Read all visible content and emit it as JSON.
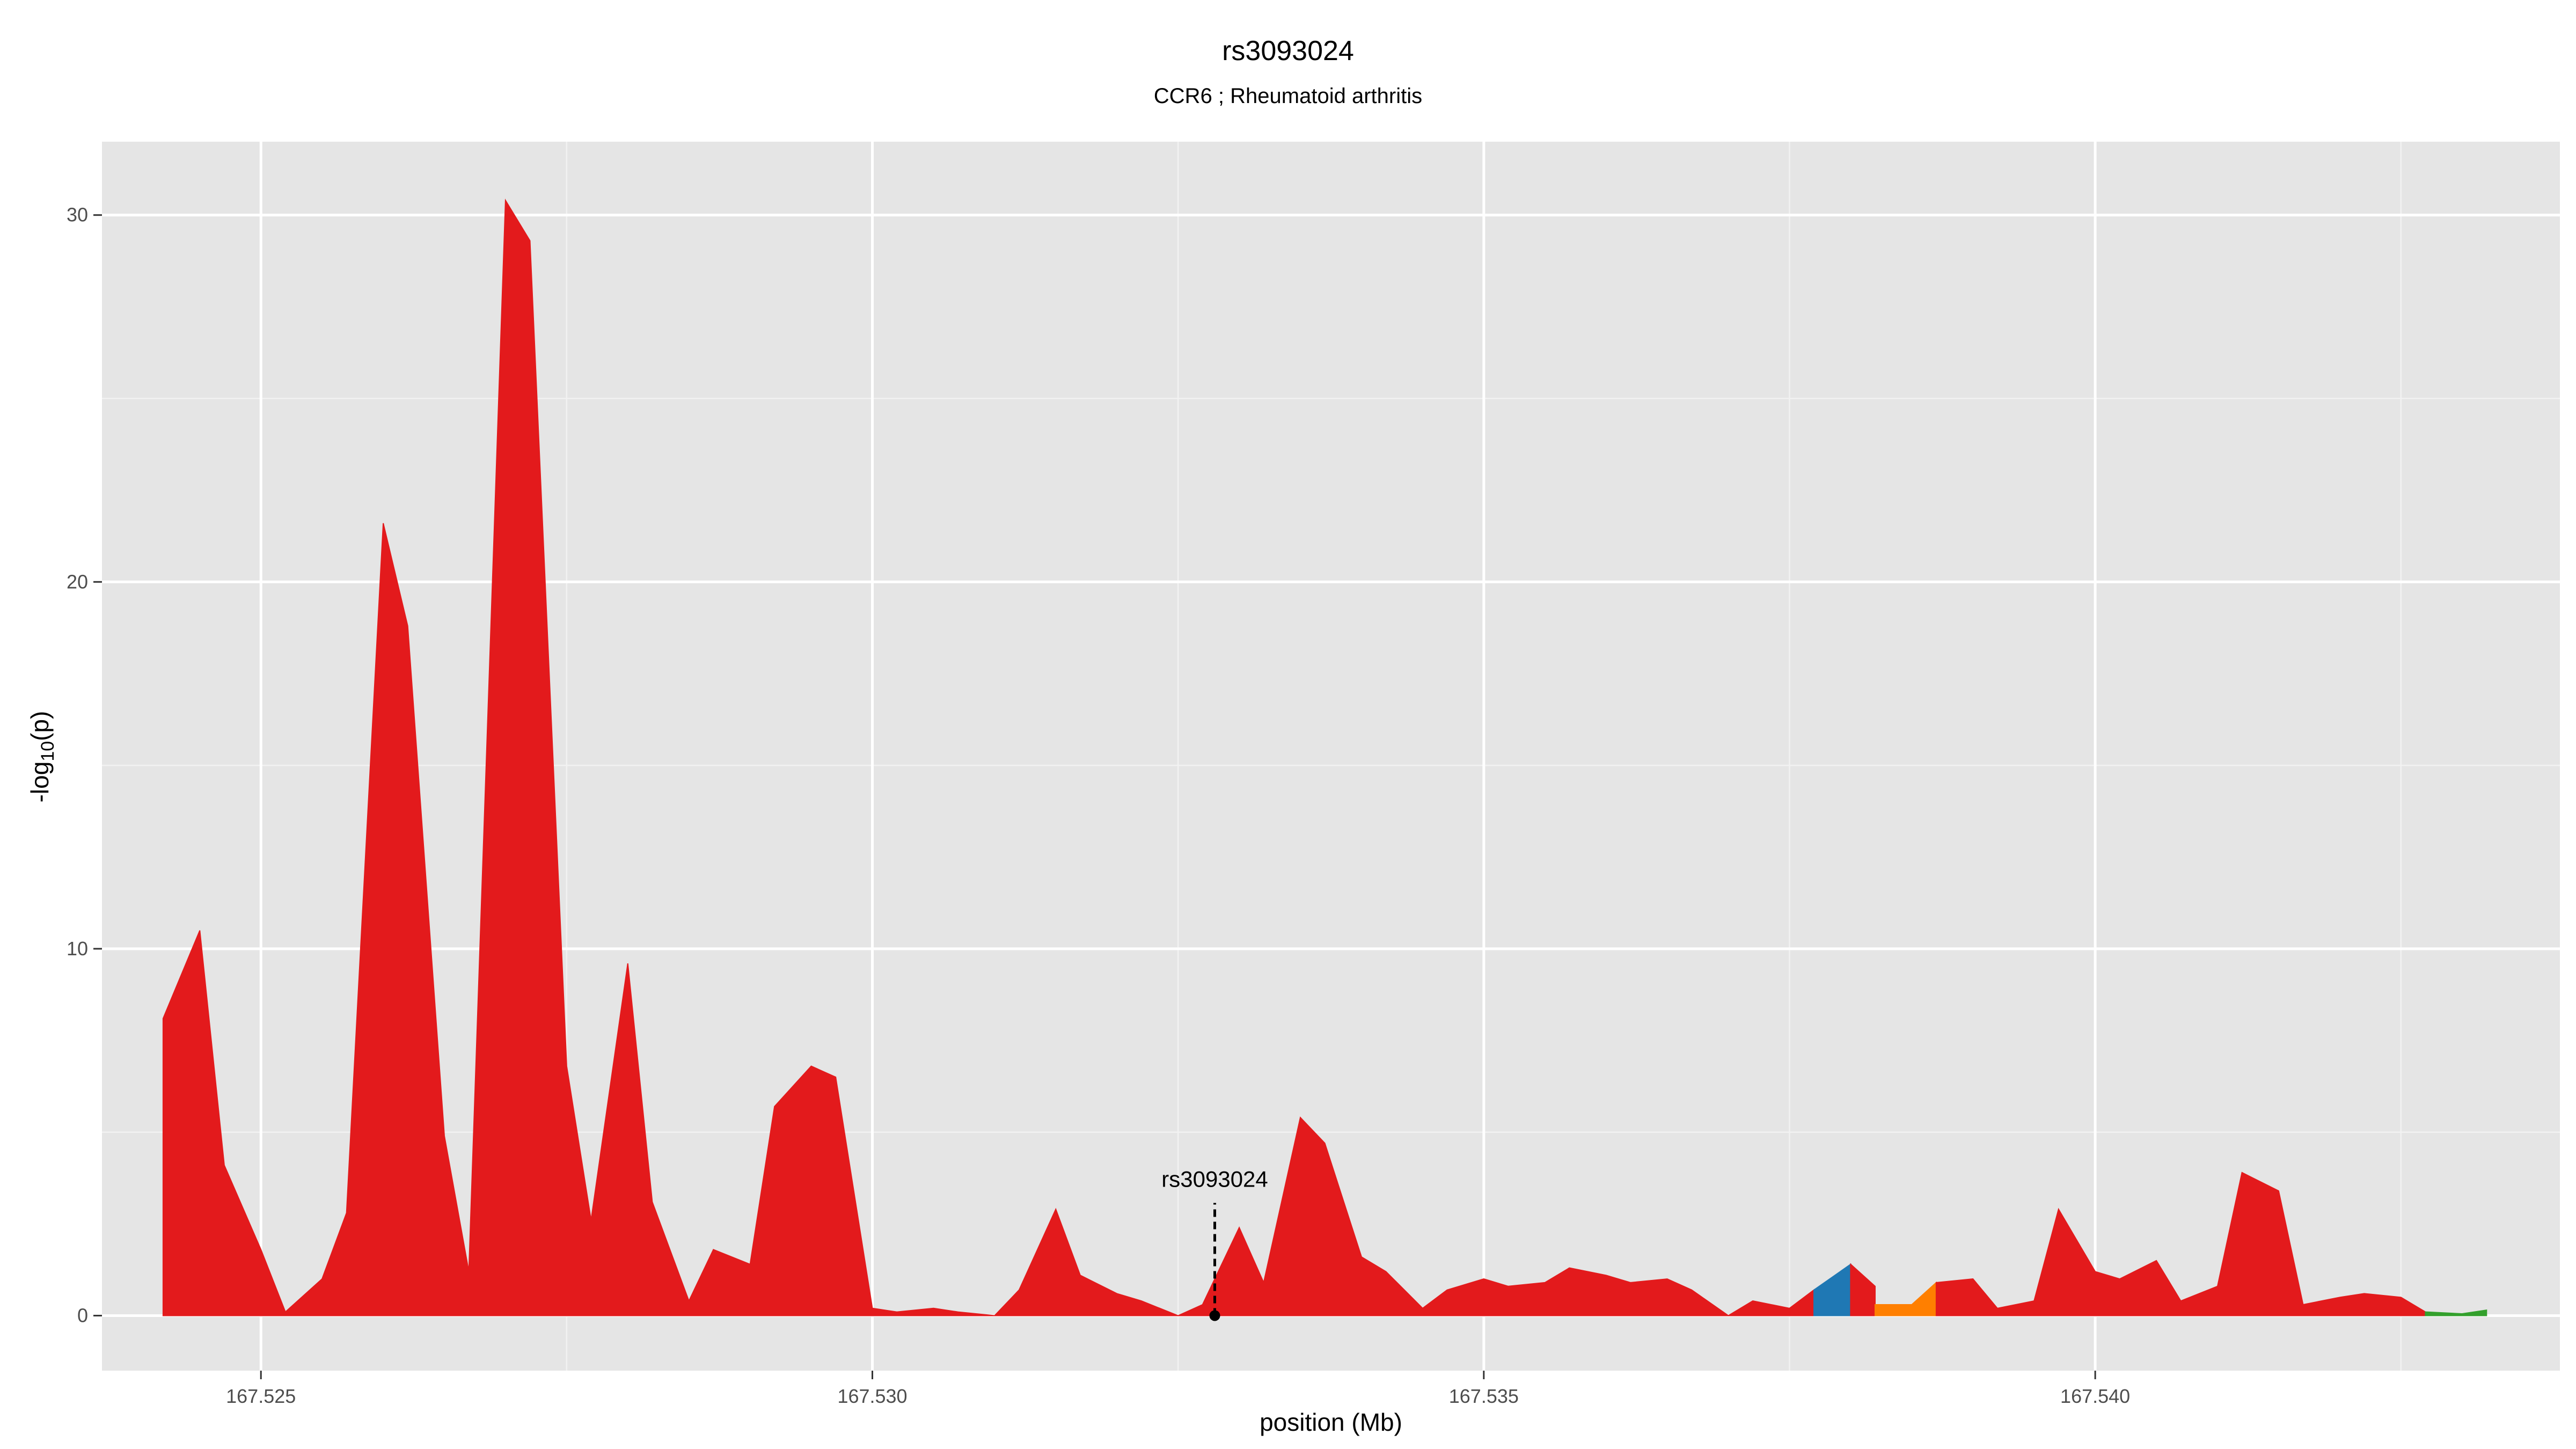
{
  "chart_data": {
    "type": "area",
    "title": "rs3093024",
    "subtitle": "CCR6 ; Rheumatoid arthritis",
    "xlabel": "position (Mb)",
    "ylabel_main": "-log",
    "ylabel_sub": "10",
    "ylabel_tail": "(p)",
    "xlim": [
      167.5237,
      167.5438
    ],
    "ylim": [
      -1.5,
      32
    ],
    "x_ticks": [
      167.525,
      167.53,
      167.535,
      167.54
    ],
    "x_tick_labels": [
      "167.525",
      "167.530",
      "167.535",
      "167.540"
    ],
    "x_minor_ticks": [
      167.5275,
      167.5325,
      167.5375,
      167.5425
    ],
    "y_ticks": [
      0,
      10,
      20,
      30
    ],
    "y_tick_labels": [
      "0",
      "10",
      "20",
      "30"
    ],
    "y_minor_ticks": [
      5,
      15,
      25
    ],
    "grid": true,
    "background": "#e5e5e5",
    "annotation": {
      "label": "rs3093024",
      "x": 167.5328,
      "y": 0
    },
    "series": [
      {
        "color": "#e31a1c",
        "points": [
          [
            167.5242,
            0
          ],
          [
            167.5242,
            8.1
          ],
          [
            167.5245,
            10.5
          ],
          [
            167.5247,
            4.1
          ],
          [
            167.525,
            1.8
          ],
          [
            167.5252,
            0.1
          ],
          [
            167.5255,
            1.0
          ],
          [
            167.5257,
            2.8
          ],
          [
            167.526,
            21.6
          ],
          [
            167.5262,
            18.8
          ],
          [
            167.5265,
            4.9
          ],
          [
            167.5267,
            1.2
          ],
          [
            167.527,
            30.4
          ],
          [
            167.5272,
            29.3
          ],
          [
            167.5275,
            6.8
          ],
          [
            167.5277,
            2.6
          ],
          [
            167.528,
            9.6
          ],
          [
            167.5282,
            3.1
          ],
          [
            167.5285,
            0.4
          ],
          [
            167.5287,
            1.8
          ],
          [
            167.529,
            1.4
          ],
          [
            167.5292,
            5.7
          ],
          [
            167.5295,
            6.8
          ],
          [
            167.5297,
            6.5
          ],
          [
            167.53,
            0.2
          ],
          [
            167.5302,
            0.1
          ],
          [
            167.5305,
            0.2
          ],
          [
            167.5307,
            0.1
          ],
          [
            167.531,
            0.0
          ],
          [
            167.5312,
            0.7
          ],
          [
            167.5315,
            2.9
          ],
          [
            167.5317,
            1.1
          ],
          [
            167.532,
            0.6
          ],
          [
            167.5322,
            0.4
          ],
          [
            167.5325,
            0.0
          ],
          [
            167.5327,
            0.3
          ],
          [
            167.533,
            2.4
          ],
          [
            167.5332,
            0.9
          ],
          [
            167.5335,
            5.4
          ],
          [
            167.5337,
            4.7
          ],
          [
            167.534,
            1.6
          ],
          [
            167.5342,
            1.2
          ],
          [
            167.5345,
            0.2
          ],
          [
            167.5347,
            0.7
          ],
          [
            167.535,
            1.0
          ],
          [
            167.5352,
            0.8
          ],
          [
            167.5355,
            0.9
          ],
          [
            167.5357,
            1.3
          ],
          [
            167.536,
            1.1
          ],
          [
            167.5362,
            0.9
          ],
          [
            167.5365,
            1.0
          ],
          [
            167.5367,
            0.7
          ],
          [
            167.537,
            0.0
          ],
          [
            167.5372,
            0.4
          ],
          [
            167.5375,
            0.2
          ],
          [
            167.5377,
            0.7
          ],
          [
            167.5377,
            0
          ]
        ]
      },
      {
        "color": "#1f78b4",
        "points": [
          [
            167.5377,
            0
          ],
          [
            167.5377,
            0.7
          ],
          [
            167.538,
            1.4
          ],
          [
            167.538,
            0
          ]
        ]
      },
      {
        "color": "#e31a1c",
        "points": [
          [
            167.538,
            0
          ],
          [
            167.538,
            1.4
          ],
          [
            167.5382,
            0.8
          ],
          [
            167.5382,
            0
          ]
        ]
      },
      {
        "color": "#ff7f00",
        "points": [
          [
            167.5382,
            0
          ],
          [
            167.5382,
            0.3
          ],
          [
            167.5385,
            0.3
          ],
          [
            167.5387,
            0.9
          ],
          [
            167.5387,
            0
          ]
        ]
      },
      {
        "color": "#e31a1c",
        "points": [
          [
            167.5387,
            0
          ],
          [
            167.5387,
            0.9
          ],
          [
            167.539,
            1.0
          ],
          [
            167.5392,
            0.2
          ],
          [
            167.5395,
            0.4
          ],
          [
            167.5397,
            2.9
          ],
          [
            167.54,
            1.2
          ],
          [
            167.5402,
            1.0
          ],
          [
            167.5405,
            1.5
          ],
          [
            167.5407,
            0.4
          ],
          [
            167.541,
            0.8
          ],
          [
            167.5412,
            3.9
          ],
          [
            167.5415,
            3.4
          ],
          [
            167.5417,
            0.3
          ],
          [
            167.542,
            0.5
          ],
          [
            167.5422,
            0.6
          ],
          [
            167.5425,
            0.5
          ],
          [
            167.5427,
            0.1
          ],
          [
            167.5427,
            0
          ]
        ]
      },
      {
        "color": "#33a02c",
        "points": [
          [
            167.5427,
            0
          ],
          [
            167.5427,
            0.1
          ],
          [
            167.543,
            0.05
          ],
          [
            167.5432,
            0.15
          ],
          [
            167.5432,
            0
          ]
        ]
      }
    ]
  }
}
